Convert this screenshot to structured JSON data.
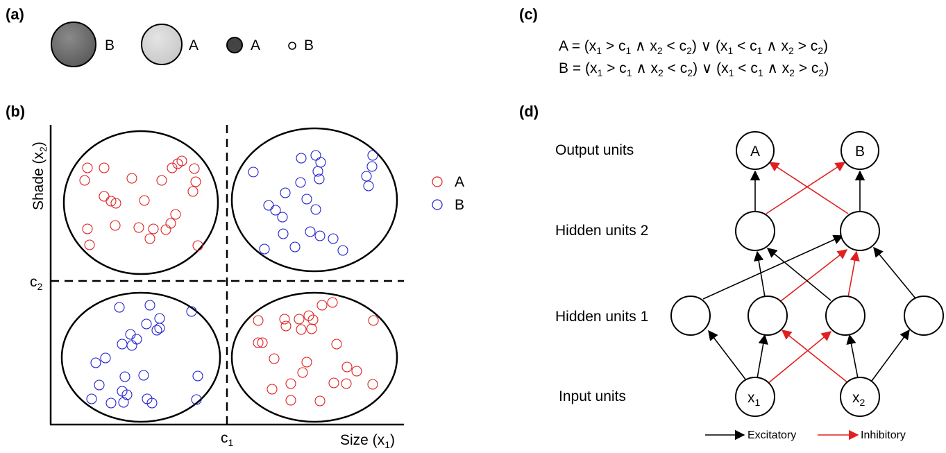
{
  "panels": {
    "a": "(a)",
    "b": "(b)",
    "c": "(c)",
    "d": "(d)"
  },
  "panel_a": {
    "items": [
      "B",
      "A",
      "A",
      "B"
    ]
  },
  "panel_b": {
    "y_axis_label": "Shade (x",
    "y_axis_sub": "2",
    "y_axis_close": ")",
    "x_axis_label": "Size (x",
    "x_axis_sub": "1",
    "x_axis_close": ")",
    "c1_label": "c",
    "c1_sub": "1",
    "c2_label": "c",
    "c2_sub": "2",
    "legend": [
      {
        "label": "A",
        "color": "#e02020"
      },
      {
        "label": "B",
        "color": "#2020d0"
      }
    ]
  },
  "panel_c": {
    "eq_a_prefix": "A",
    "eq_b_prefix": "B"
  },
  "panel_d": {
    "layer_labels": {
      "output": "Output units",
      "hidden2": "Hidden units 2",
      "hidden1": "Hidden units 1",
      "input": "Input units"
    },
    "output_nodes": [
      "A",
      "B"
    ],
    "input_nodes": [
      {
        "base": "x",
        "sub": "1"
      },
      {
        "base": "x",
        "sub": "2"
      }
    ],
    "legend": {
      "excitatory": "Excitatory",
      "inhibitory": "Inhibitory"
    },
    "colors": {
      "excitatory": "#000000",
      "inhibitory": "#e02020"
    }
  }
}
